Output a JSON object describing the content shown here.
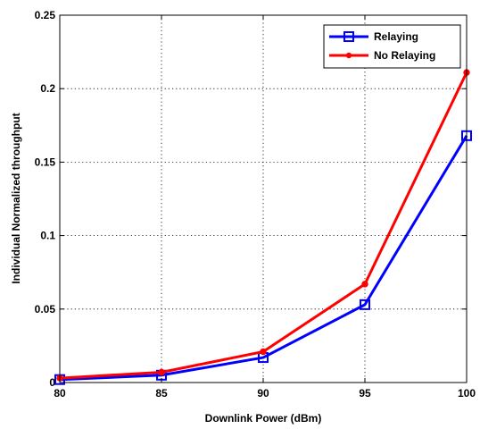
{
  "chart_data": {
    "type": "line",
    "title": "",
    "xlabel": "Downlink Power (dBm)",
    "ylabel": "Individual Normalized throughput",
    "xlim": [
      80,
      100
    ],
    "ylim": [
      0,
      0.25
    ],
    "xticks": [
      80,
      85,
      90,
      95,
      100
    ],
    "yticks": [
      0,
      0.05,
      0.1,
      0.15,
      0.2,
      0.25
    ],
    "xtick_labels": [
      "80",
      "85",
      "90",
      "95",
      "100"
    ],
    "ytick_labels": [
      "0",
      "0.05",
      "0.1",
      "0.15",
      "0.2",
      "0.25"
    ],
    "grid": true,
    "legend_position": "top-right",
    "series": [
      {
        "name": "Relaying",
        "color": "#0000ff",
        "marker": "square",
        "x": [
          80,
          85,
          90,
          95,
          100
        ],
        "y": [
          0.002,
          0.005,
          0.017,
          0.053,
          0.168
        ]
      },
      {
        "name": "No Relaying",
        "color": "#ff0000",
        "marker": "dot",
        "x": [
          80,
          85,
          90,
          95,
          100
        ],
        "y": [
          0.003,
          0.007,
          0.021,
          0.067,
          0.211
        ]
      }
    ]
  }
}
